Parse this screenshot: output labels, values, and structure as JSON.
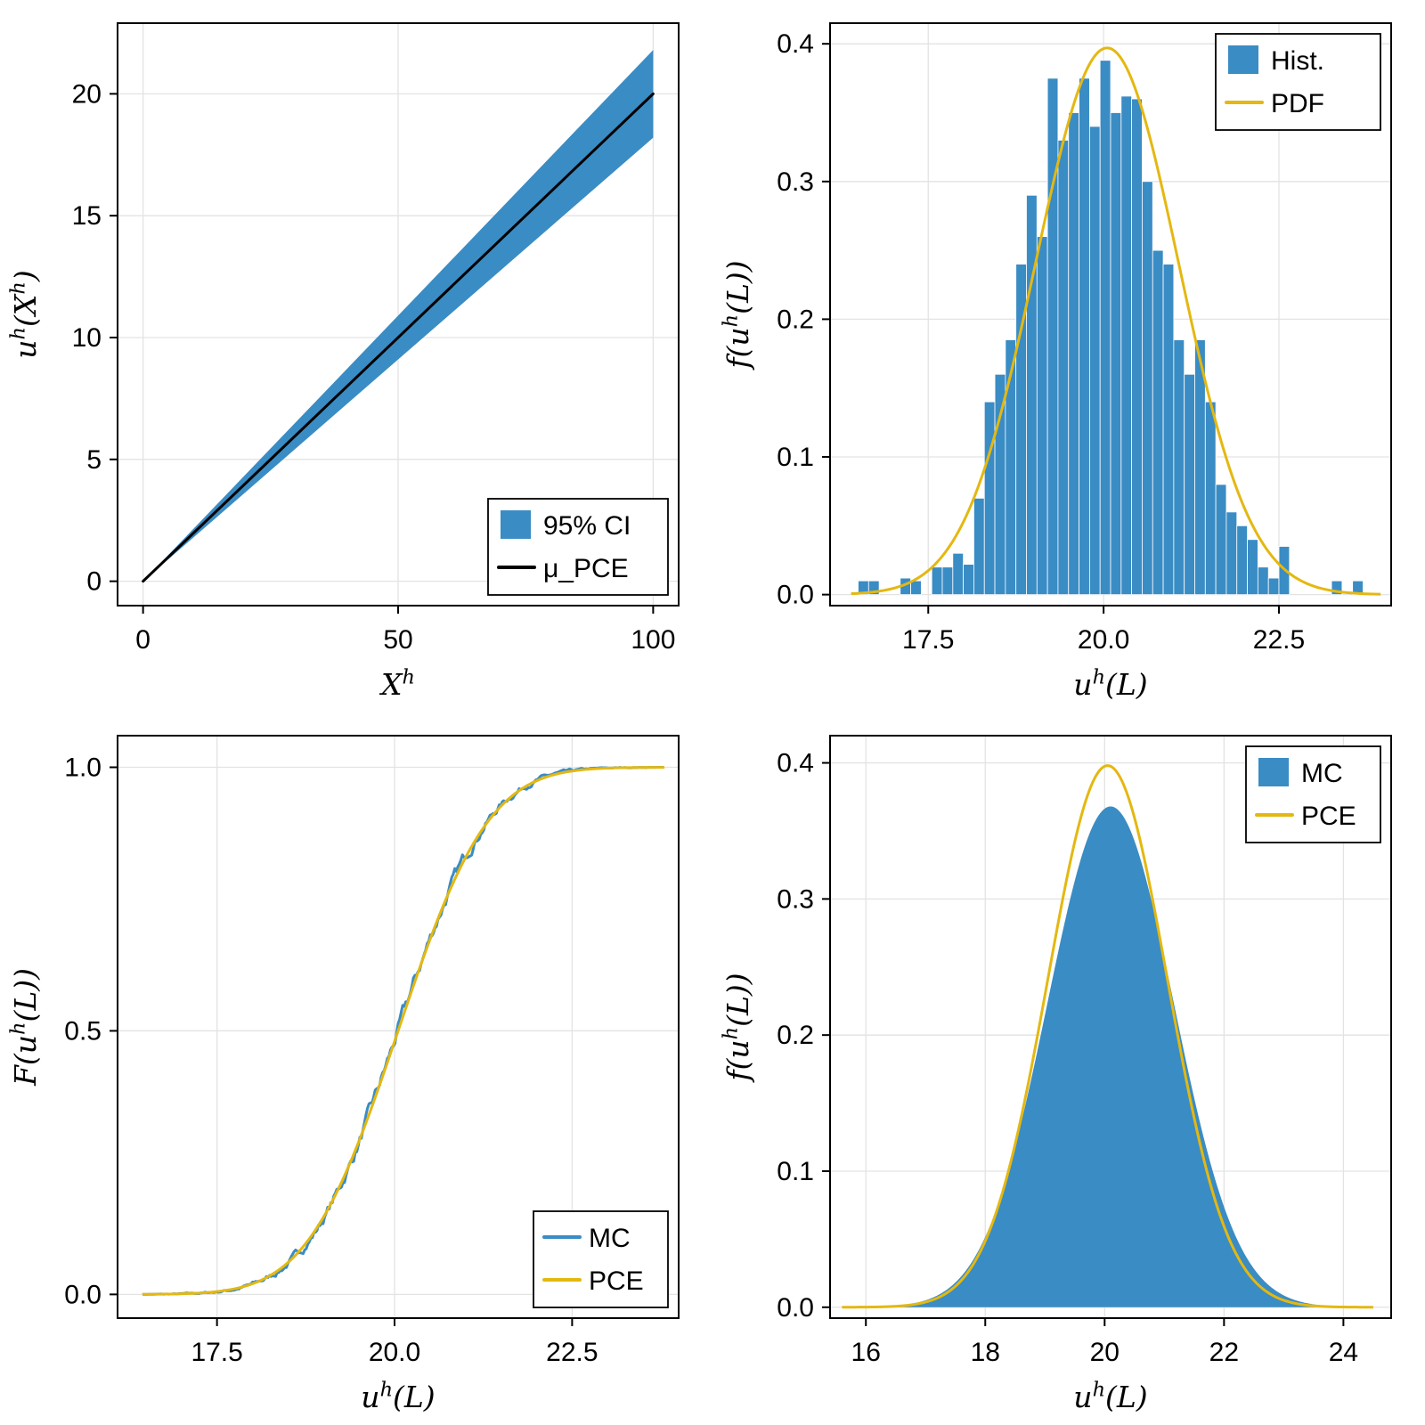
{
  "page": {
    "background": "#ffffff"
  },
  "colors": {
    "blue": "#3a8cc4",
    "yellow": "#e4b811",
    "black": "#000000",
    "grid": "#e3e3e3",
    "text": "#000000"
  },
  "chart_data": [
    {
      "id": "confidence-band",
      "type": "line",
      "title": "",
      "xlabel": "X^h",
      "ylabel": "u^h(X^h)",
      "xlim": [
        -5,
        105
      ],
      "ylim": [
        -1.0,
        22.9
      ],
      "xticks": [
        {
          "v": 0,
          "label": "0"
        },
        {
          "v": 50,
          "label": "50"
        },
        {
          "v": 100,
          "label": "100"
        }
      ],
      "yticks": [
        {
          "v": 0,
          "label": "0"
        },
        {
          "v": 5,
          "label": "5"
        },
        {
          "v": 10,
          "label": "10"
        },
        {
          "v": 15,
          "label": "15"
        },
        {
          "v": 20,
          "label": "20"
        }
      ],
      "series": [
        {
          "name": "95% CI",
          "kind": "band",
          "x": [
            0,
            100
          ],
          "lower": [
            0,
            18.2
          ],
          "upper": [
            0,
            21.8
          ],
          "color": "blue"
        },
        {
          "name": "mu_PCE",
          "kind": "segline",
          "x": [
            0,
            100
          ],
          "y": [
            0,
            20
          ],
          "color": "black",
          "width": 3
        }
      ],
      "legend": {
        "position": "bottom-right",
        "items": [
          {
            "swatch": "patch",
            "color": "blue",
            "label": "95% CI"
          },
          {
            "swatch": "line",
            "color": "black",
            "label": "μ_PCE"
          }
        ]
      }
    },
    {
      "id": "histogram-with-pdf",
      "type": "bar",
      "title": "",
      "xlabel": "u^h(L)",
      "ylabel": "f(u^h(L))",
      "xlim": [
        16.1,
        24.1
      ],
      "ylim": [
        -0.008,
        0.415
      ],
      "xticks": [
        {
          "v": 17.5,
          "label": "17.5"
        },
        {
          "v": 20.0,
          "label": "20.0"
        },
        {
          "v": 22.5,
          "label": "22.5"
        }
      ],
      "yticks": [
        {
          "v": 0,
          "label": "0.0"
        },
        {
          "v": 0.1,
          "label": "0.1"
        },
        {
          "v": 0.2,
          "label": "0.2"
        },
        {
          "v": 0.3,
          "label": "0.3"
        },
        {
          "v": 0.4,
          "label": "0.4"
        }
      ],
      "series": [
        {
          "name": "Hist.",
          "kind": "hist",
          "start": 16.5,
          "bin_width": 0.15,
          "color": "blue",
          "heights": [
            0.01,
            0.01,
            0,
            0,
            0.012,
            0.01,
            0,
            0.02,
            0.02,
            0.03,
            0.022,
            0.07,
            0.14,
            0.16,
            0.185,
            0.24,
            0.29,
            0.26,
            0.375,
            0.33,
            0.35,
            0.375,
            0.34,
            0.388,
            0.35,
            0.362,
            0.36,
            0.3,
            0.25,
            0.24,
            0.185,
            0.16,
            0.185,
            0.14,
            0.08,
            0.06,
            0.05,
            0.04,
            0.02,
            0.012,
            0.035,
            0,
            0,
            0,
            0,
            0.01,
            0,
            0.01
          ]
        },
        {
          "name": "PDF",
          "kind": "curve",
          "fn": "normpdf",
          "mean": 20.05,
          "sd": 1.02,
          "peak": 0.397,
          "range": [
            16.4,
            23.95
          ],
          "color": "yellow",
          "width": 3
        }
      ],
      "legend": {
        "position": "top-right",
        "items": [
          {
            "swatch": "patch",
            "color": "blue",
            "label": "Hist."
          },
          {
            "swatch": "line",
            "color": "yellow",
            "label": "PDF"
          }
        ]
      }
    },
    {
      "id": "cdf-comparison",
      "type": "line",
      "title": "",
      "xlabel": "u^h(L)",
      "ylabel": "F(u^h(L))",
      "xlim": [
        16.1,
        24.0
      ],
      "ylim": [
        -0.045,
        1.06
      ],
      "xticks": [
        {
          "v": 17.5,
          "label": "17.5"
        },
        {
          "v": 20.0,
          "label": "20.0"
        },
        {
          "v": 22.5,
          "label": "22.5"
        }
      ],
      "yticks": [
        {
          "v": 0,
          "label": "0.0"
        },
        {
          "v": 0.5,
          "label": "0.5"
        },
        {
          "v": 1.0,
          "label": "1.0"
        }
      ],
      "series": [
        {
          "name": "MC",
          "kind": "curve",
          "fn": "normcdf",
          "mean": 20.05,
          "sd": 0.99,
          "range": [
            16.45,
            23.78
          ],
          "color": "blue",
          "width": 3,
          "jitter": true
        },
        {
          "name": "PCE",
          "kind": "curve",
          "fn": "normcdf",
          "mean": 20.05,
          "sd": 1.0,
          "range": [
            16.45,
            23.8
          ],
          "color": "yellow",
          "width": 3
        }
      ],
      "legend": {
        "position": "bottom-right",
        "items": [
          {
            "swatch": "line",
            "color": "blue",
            "label": "MC"
          },
          {
            "swatch": "line",
            "color": "yellow",
            "label": "PCE"
          }
        ]
      }
    },
    {
      "id": "pdf-comparison",
      "type": "area",
      "title": "",
      "xlabel": "u^h(L)",
      "ylabel": "f(u^h(L))",
      "xlim": [
        15.4,
        24.8
      ],
      "ylim": [
        -0.008,
        0.42
      ],
      "xticks": [
        {
          "v": 16,
          "label": "16"
        },
        {
          "v": 18,
          "label": "18"
        },
        {
          "v": 20,
          "label": "20"
        },
        {
          "v": 22,
          "label": "22"
        },
        {
          "v": 24,
          "label": "24"
        }
      ],
      "yticks": [
        {
          "v": 0,
          "label": "0.0"
        },
        {
          "v": 0.1,
          "label": "0.1"
        },
        {
          "v": 0.2,
          "label": "0.2"
        },
        {
          "v": 0.3,
          "label": "0.3"
        },
        {
          "v": 0.4,
          "label": "0.4"
        }
      ],
      "series": [
        {
          "name": "MC",
          "kind": "curve",
          "fn": "normpdf",
          "mean": 20.1,
          "sd": 1.06,
          "peak": 0.368,
          "range": [
            15.7,
            24.45
          ],
          "color": "blue",
          "width": 2,
          "fill": true
        },
        {
          "name": "PCE",
          "kind": "curve",
          "fn": "normpdf",
          "mean": 20.05,
          "sd": 1.0,
          "peak": 0.398,
          "range": [
            15.6,
            24.5
          ],
          "color": "yellow",
          "width": 3
        }
      ],
      "legend": {
        "position": "top-right",
        "items": [
          {
            "swatch": "patch",
            "color": "blue",
            "label": "MC"
          },
          {
            "swatch": "line",
            "color": "yellow",
            "label": "PCE"
          }
        ]
      }
    }
  ]
}
